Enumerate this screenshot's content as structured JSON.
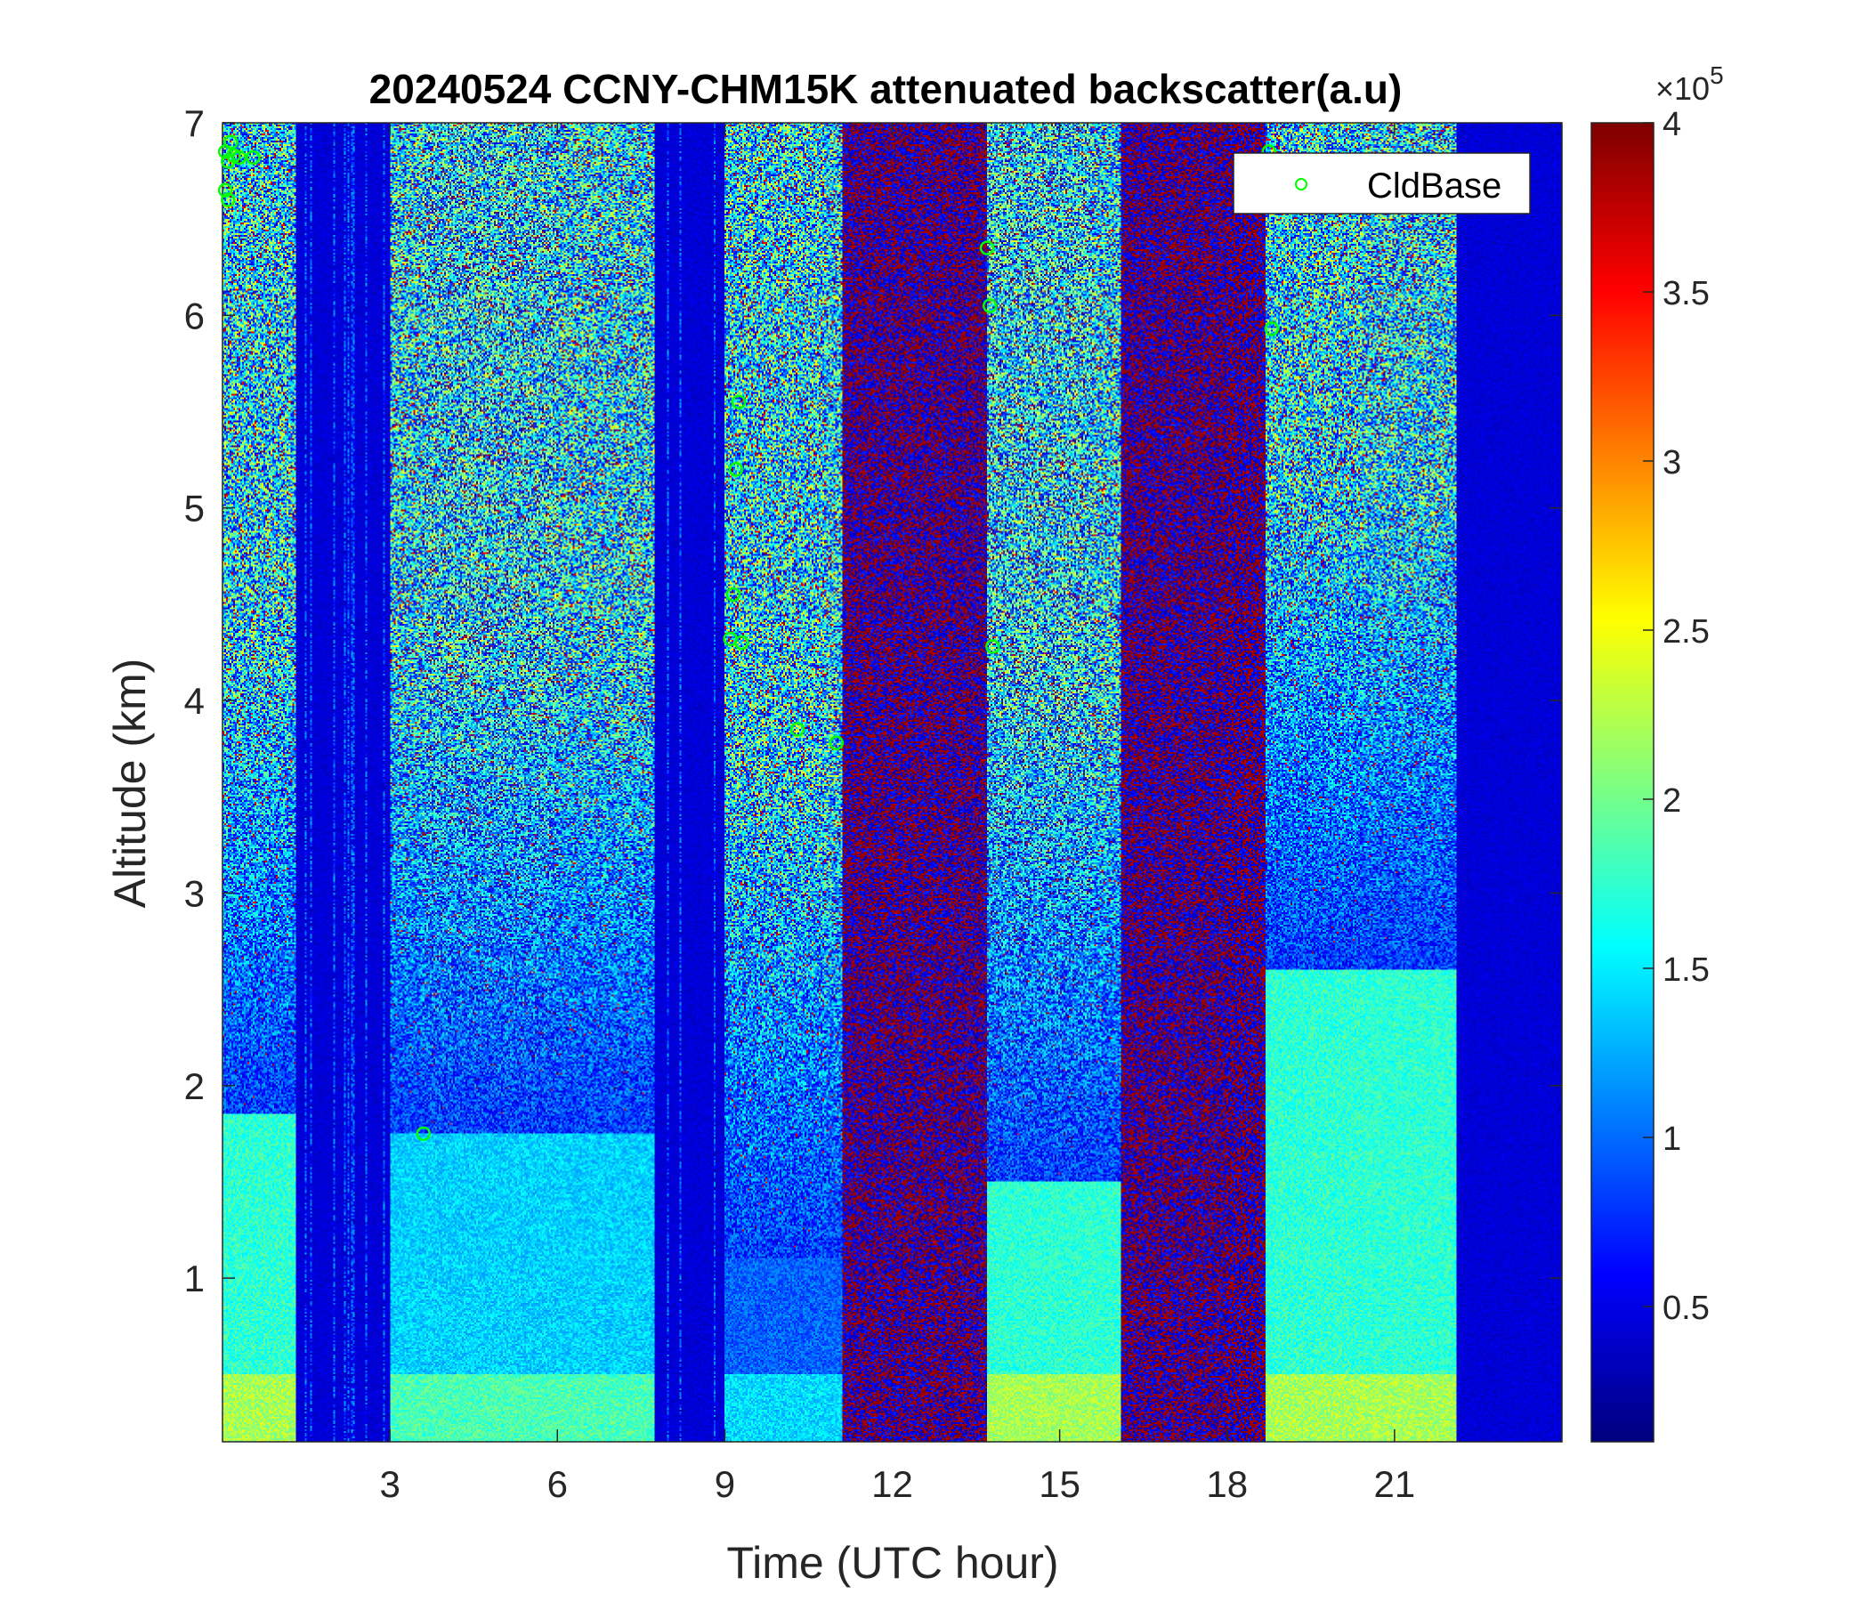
{
  "chart_data": {
    "type": "heatmap",
    "title": "20240524 CCNY-CHM15K attenuated backscatter(a.u)",
    "xlabel": "Time (UTC hour)",
    "ylabel": "Altitude (km)",
    "xlim": [
      0,
      24
    ],
    "ylim": [
      0.15,
      7
    ],
    "x_ticks": [
      3,
      6,
      9,
      12,
      15,
      18,
      21
    ],
    "y_ticks": [
      1,
      2,
      3,
      4,
      5,
      6,
      7
    ],
    "colormap": "jet",
    "colorbar": {
      "clim": [
        10000,
        400000
      ],
      "ticks": [
        0.5,
        1,
        1.5,
        2,
        2.5,
        3,
        3.5,
        4
      ],
      "tick_labels": [
        "0.5",
        "1",
        "1.5",
        "2",
        "2.5",
        "3",
        "3.5",
        "4"
      ],
      "exponent_label": "×10",
      "exponent_power": "5"
    },
    "data_segments": [
      {
        "start": 0.0,
        "end": 1.3,
        "blh": 1.85,
        "haze": "cyan"
      },
      {
        "start": 3.0,
        "end": 7.75,
        "blh": 1.75,
        "haze": "lightblue"
      },
      {
        "start": 9.0,
        "end": 11.1,
        "blh": 1.1,
        "haze": "blue"
      },
      {
        "start": 13.7,
        "end": 16.1,
        "blh": 1.5,
        "haze": "cyan"
      },
      {
        "start": 18.7,
        "end": 22.1,
        "blh": 2.6,
        "haze": "cyan"
      }
    ],
    "noisy_red_segments": [
      {
        "start": 11.1,
        "end": 13.7
      },
      {
        "start": 16.1,
        "end": 18.7
      }
    ],
    "series": [
      {
        "name": "CldBase",
        "marker": "circle",
        "color": "#00ff00",
        "x": [
          0.05,
          0.1,
          0.15,
          0.2,
          0.3,
          0.55,
          0.05,
          0.1,
          3.6,
          9.1,
          9.15,
          9.2,
          9.25,
          9.3,
          10.3,
          11.0,
          13.7,
          13.75,
          13.8,
          18.8,
          18.75
        ],
        "y": [
          6.85,
          6.8,
          6.9,
          6.83,
          6.82,
          6.82,
          6.65,
          6.6,
          1.75,
          4.32,
          4.55,
          5.2,
          5.55,
          4.3,
          3.85,
          3.78,
          6.35,
          6.05,
          4.28,
          5.93,
          6.85
        ]
      }
    ],
    "legend": {
      "position": "top-right",
      "entries": [
        "CldBase"
      ]
    }
  }
}
